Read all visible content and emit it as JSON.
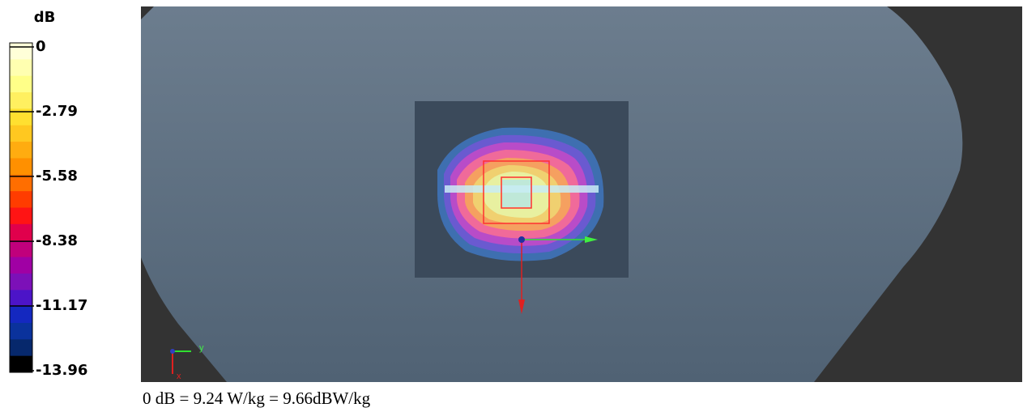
{
  "colorbar": {
    "unit": "dB",
    "ticks": [
      0,
      -2.79,
      -5.58,
      -8.38,
      -11.17,
      -13.96
    ],
    "colors": [
      "#ffffd8",
      "#ffffb0",
      "#ffff88",
      "#fff060",
      "#ffe030",
      "#ffc820",
      "#ffac10",
      "#ff9000",
      "#ff6e00",
      "#ff3c00",
      "#ff1414",
      "#e0004c",
      "#c0007c",
      "#a000a4",
      "#7c10b8",
      "#4c14c8",
      "#1428c0",
      "#0a329c",
      "#06286c",
      "#000000"
    ]
  },
  "view": {
    "axis_y": "y",
    "axis_x": "x"
  },
  "caption": "0 dB = 9.24 W/kg = 9.66dBW/kg"
}
